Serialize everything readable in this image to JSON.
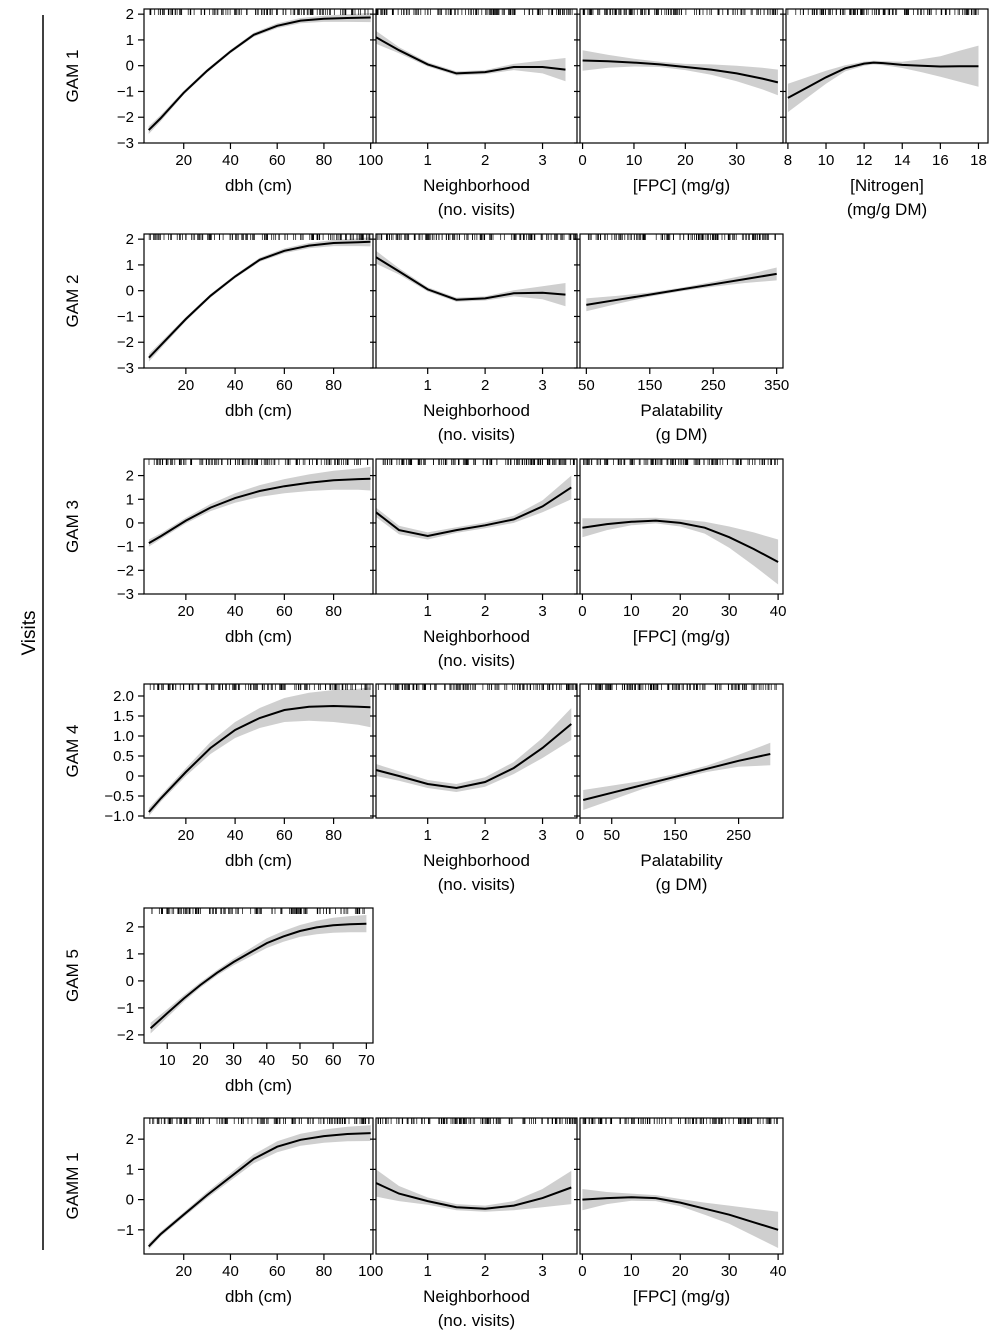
{
  "figure": {
    "side_label": "Visits"
  },
  "chart_data": [
    {
      "type": "line",
      "row": 0,
      "col": 0,
      "row_title": "GAM 1",
      "xlabel_lines": [
        "dbh (cm)"
      ],
      "xlim": [
        3,
        101
      ],
      "ylim": [
        -3,
        2.2
      ],
      "xticks": [
        20,
        40,
        60,
        80,
        100
      ],
      "yticks": [
        -3,
        -2,
        -1,
        0,
        1,
        2
      ],
      "rug_range": [
        5,
        100
      ],
      "series": [
        {
          "x": [
            5,
            10,
            20,
            30,
            40,
            50,
            60,
            70,
            80,
            90,
            100
          ],
          "y": [
            -2.5,
            -2.05,
            -1.05,
            -0.2,
            0.55,
            1.2,
            1.55,
            1.75,
            1.82,
            1.85,
            1.87
          ],
          "band": [
            0.15,
            0.12,
            0.08,
            0.07,
            0.07,
            0.08,
            0.09,
            0.1,
            0.12,
            0.15,
            0.18
          ]
        }
      ]
    },
    {
      "type": "line",
      "row": 0,
      "col": 1,
      "xlabel_lines": [
        "Neighborhood",
        "(no. visits)"
      ],
      "xlim": [
        0.1,
        3.6
      ],
      "ylim": [
        -3,
        2.2
      ],
      "xticks": [
        1,
        2,
        3
      ],
      "yticks": [
        -3,
        -2,
        -1,
        0,
        1,
        2
      ],
      "rug_range": [
        0.1,
        3.6
      ],
      "series": [
        {
          "x": [
            0.1,
            0.5,
            1.0,
            1.5,
            2.0,
            2.5,
            3.0,
            3.4
          ],
          "y": [
            1.1,
            0.6,
            0.05,
            -0.3,
            -0.25,
            -0.05,
            -0.05,
            -0.15
          ],
          "band": [
            0.25,
            0.12,
            0.08,
            0.08,
            0.08,
            0.12,
            0.25,
            0.45
          ]
        }
      ]
    },
    {
      "type": "line",
      "row": 0,
      "col": 2,
      "xlabel_lines": [
        "[FPC] (mg/g)"
      ],
      "xlim": [
        -0.5,
        39
      ],
      "ylim": [
        -3,
        2.2
      ],
      "xticks": [
        0,
        10,
        20,
        30
      ],
      "yticks": [
        -3,
        -2,
        -1,
        0,
        1,
        2
      ],
      "rug_range": [
        0,
        38
      ],
      "series": [
        {
          "x": [
            0,
            5,
            10,
            15,
            20,
            25,
            30,
            35,
            38
          ],
          "y": [
            0.2,
            0.17,
            0.12,
            0.05,
            -0.05,
            -0.15,
            -0.3,
            -0.5,
            -0.65
          ],
          "band": [
            0.4,
            0.25,
            0.15,
            0.1,
            0.12,
            0.2,
            0.3,
            0.42,
            0.5
          ]
        }
      ]
    },
    {
      "type": "line",
      "row": 0,
      "col": 3,
      "xlabel_lines": [
        "[Nitrogen]",
        "(mg/g DM)"
      ],
      "xlim": [
        7.9,
        18.5
      ],
      "ylim": [
        -3,
        2.2
      ],
      "xticks": [
        8,
        10,
        12,
        14,
        16,
        18
      ],
      "yticks": [
        -3,
        -2,
        -1,
        0,
        1,
        2
      ],
      "rug_range": [
        8,
        18
      ],
      "series": [
        {
          "x": [
            8,
            9,
            10,
            11,
            12,
            12.5,
            13,
            14,
            15,
            16,
            17,
            18
          ],
          "y": [
            -1.25,
            -0.85,
            -0.45,
            -0.1,
            0.08,
            0.12,
            0.1,
            0.03,
            0.0,
            -0.03,
            -0.02,
            -0.02
          ],
          "band": [
            0.55,
            0.4,
            0.25,
            0.12,
            0.08,
            0.07,
            0.08,
            0.12,
            0.25,
            0.4,
            0.6,
            0.8
          ]
        }
      ]
    },
    {
      "type": "line",
      "row": 1,
      "col": 0,
      "row_title": "GAM 2",
      "xlabel_lines": [
        "dbh (cm)"
      ],
      "xlim": [
        3,
        96
      ],
      "ylim": [
        -3,
        2.2
      ],
      "xticks": [
        20,
        40,
        60,
        80
      ],
      "yticks": [
        -3,
        -2,
        -1,
        0,
        1,
        2
      ],
      "rug_range": [
        5,
        95
      ],
      "series": [
        {
          "x": [
            5,
            10,
            20,
            30,
            40,
            50,
            60,
            70,
            80,
            90,
            95
          ],
          "y": [
            -2.6,
            -2.1,
            -1.1,
            -0.2,
            0.55,
            1.2,
            1.55,
            1.75,
            1.85,
            1.88,
            1.9
          ],
          "band": [
            0.15,
            0.12,
            0.08,
            0.07,
            0.07,
            0.08,
            0.09,
            0.1,
            0.12,
            0.15,
            0.18
          ]
        }
      ]
    },
    {
      "type": "line",
      "row": 1,
      "col": 1,
      "xlabel_lines": [
        "Neighborhood",
        "(no. visits)"
      ],
      "xlim": [
        0.1,
        3.6
      ],
      "ylim": [
        -3,
        2.2
      ],
      "xticks": [
        1,
        2,
        3
      ],
      "yticks": [
        -3,
        -2,
        -1,
        0,
        1,
        2
      ],
      "rug_range": [
        0.1,
        3.6
      ],
      "series": [
        {
          "x": [
            0.1,
            0.5,
            1.0,
            1.5,
            2.0,
            2.5,
            3.0,
            3.4
          ],
          "y": [
            1.3,
            0.75,
            0.05,
            -0.35,
            -0.3,
            -0.1,
            -0.08,
            -0.15
          ],
          "band": [
            0.25,
            0.12,
            0.08,
            0.08,
            0.08,
            0.12,
            0.25,
            0.45
          ]
        }
      ]
    },
    {
      "type": "line",
      "row": 1,
      "col": 2,
      "xlabel_lines": [
        "Palatability",
        "(g DM)"
      ],
      "xlim": [
        40,
        360
      ],
      "ylim": [
        -3,
        2.2
      ],
      "xticks": [
        50,
        150,
        250,
        350
      ],
      "yticks": [
        -3,
        -2,
        -1,
        0,
        1,
        2
      ],
      "rug_range": [
        50,
        350
      ],
      "series": [
        {
          "x": [
            50,
            100,
            150,
            200,
            250,
            300,
            350
          ],
          "y": [
            -0.55,
            -0.35,
            -0.15,
            0.05,
            0.25,
            0.45,
            0.65
          ],
          "band": [
            0.25,
            0.15,
            0.08,
            0.07,
            0.1,
            0.15,
            0.25
          ]
        }
      ]
    },
    {
      "type": "line",
      "row": 2,
      "col": 0,
      "row_title": "GAM 3",
      "xlabel_lines": [
        "dbh (cm)"
      ],
      "xlim": [
        3,
        96
      ],
      "ylim": [
        -3,
        2.7
      ],
      "xticks": [
        20,
        40,
        60,
        80
      ],
      "yticks": [
        -3,
        -2,
        -1,
        0,
        1,
        2
      ],
      "rug_range": [
        5,
        95
      ],
      "series": [
        {
          "x": [
            5,
            10,
            20,
            30,
            40,
            50,
            60,
            70,
            80,
            90,
            95
          ],
          "y": [
            -0.85,
            -0.55,
            0.1,
            0.65,
            1.05,
            1.35,
            1.55,
            1.7,
            1.8,
            1.85,
            1.87
          ],
          "band": [
            0.15,
            0.12,
            0.12,
            0.15,
            0.2,
            0.25,
            0.3,
            0.35,
            0.4,
            0.45,
            0.5
          ]
        }
      ]
    },
    {
      "type": "line",
      "row": 2,
      "col": 1,
      "xlabel_lines": [
        "Neighborhood",
        "(no. visits)"
      ],
      "xlim": [
        0.1,
        3.6
      ],
      "ylim": [
        -3,
        2.7
      ],
      "xticks": [
        1,
        2,
        3
      ],
      "yticks": [
        -3,
        -2,
        -1,
        0,
        1,
        2
      ],
      "rug_range": [
        0.1,
        3.6
      ],
      "series": [
        {
          "x": [
            0.1,
            0.5,
            1.0,
            1.5,
            2.0,
            2.5,
            3.0,
            3.5
          ],
          "y": [
            0.45,
            -0.3,
            -0.55,
            -0.3,
            -0.1,
            0.15,
            0.7,
            1.5
          ],
          "band": [
            0.2,
            0.18,
            0.15,
            0.12,
            0.12,
            0.15,
            0.25,
            0.5
          ]
        }
      ]
    },
    {
      "type": "line",
      "row": 2,
      "col": 2,
      "xlabel_lines": [
        "[FPC] (mg/g)"
      ],
      "xlim": [
        -0.5,
        41
      ],
      "ylim": [
        -3,
        2.7
      ],
      "xticks": [
        0,
        10,
        20,
        30,
        40
      ],
      "yticks": [
        -3,
        -2,
        -1,
        0,
        1,
        2
      ],
      "rug_range": [
        0,
        40
      ],
      "series": [
        {
          "x": [
            0,
            5,
            10,
            15,
            20,
            25,
            30,
            35,
            40
          ],
          "y": [
            -0.2,
            -0.05,
            0.05,
            0.1,
            0.0,
            -0.2,
            -0.6,
            -1.1,
            -1.65
          ],
          "band": [
            0.4,
            0.25,
            0.15,
            0.12,
            0.15,
            0.25,
            0.45,
            0.7,
            0.95
          ]
        }
      ]
    },
    {
      "type": "line",
      "row": 3,
      "col": 0,
      "row_title": "GAM 4",
      "xlabel_lines": [
        "dbh (cm)"
      ],
      "xlim": [
        3,
        96
      ],
      "ylim": [
        -1.05,
        2.3
      ],
      "xticks": [
        20,
        40,
        60,
        80
      ],
      "yticks": [
        -1.0,
        -0.5,
        0,
        0.5,
        1.0,
        1.5,
        2.0
      ],
      "ytick_labels": [
        "−1.0",
        "−0.5",
        "0",
        "0.5",
        "1.0",
        "1.5",
        "2.0"
      ],
      "rug_range": [
        5,
        95
      ],
      "series": [
        {
          "x": [
            5,
            10,
            20,
            30,
            40,
            50,
            60,
            70,
            80,
            90,
            95
          ],
          "y": [
            -0.9,
            -0.55,
            0.1,
            0.7,
            1.15,
            1.45,
            1.65,
            1.73,
            1.75,
            1.73,
            1.72
          ],
          "band": [
            0.1,
            0.08,
            0.1,
            0.15,
            0.2,
            0.25,
            0.3,
            0.35,
            0.4,
            0.45,
            0.5
          ]
        }
      ]
    },
    {
      "type": "line",
      "row": 3,
      "col": 1,
      "xlabel_lines": [
        "Neighborhood",
        "(no. visits)"
      ],
      "xlim": [
        0.1,
        3.6
      ],
      "ylim": [
        -1.05,
        2.3
      ],
      "xticks": [
        1,
        2,
        3
      ],
      "yticks": [
        -1.0,
        -0.5,
        0,
        0.5,
        1.0,
        1.5,
        2.0
      ],
      "rug_range": [
        0.1,
        3.6
      ],
      "series": [
        {
          "x": [
            0.1,
            0.5,
            1.0,
            1.5,
            2.0,
            2.5,
            3.0,
            3.5
          ],
          "y": [
            0.15,
            0.0,
            -0.2,
            -0.3,
            -0.15,
            0.2,
            0.7,
            1.3
          ],
          "band": [
            0.15,
            0.12,
            0.1,
            0.1,
            0.12,
            0.15,
            0.25,
            0.4
          ]
        }
      ]
    },
    {
      "type": "line",
      "row": 3,
      "col": 2,
      "xlabel_lines": [
        "Palatability",
        "(g DM)"
      ],
      "xlim": [
        0,
        320
      ],
      "ylim": [
        -1.05,
        2.3
      ],
      "xticks": [
        0,
        50,
        150,
        250
      ],
      "yticks": [
        -1.0,
        -0.5,
        0,
        0.5,
        1.0,
        1.5,
        2.0
      ],
      "rug_range": [
        5,
        310
      ],
      "series": [
        {
          "x": [
            5,
            50,
            100,
            150,
            200,
            250,
            300
          ],
          "y": [
            -0.6,
            -0.42,
            -0.22,
            -0.02,
            0.18,
            0.38,
            0.55
          ],
          "band": [
            0.25,
            0.18,
            0.1,
            0.07,
            0.08,
            0.15,
            0.28
          ]
        }
      ]
    },
    {
      "type": "line",
      "row": 4,
      "col": 0,
      "row_title": "GAM 5",
      "xlabel_lines": [
        "dbh (cm)"
      ],
      "xlim": [
        3,
        72
      ],
      "ylim": [
        -2.3,
        2.7
      ],
      "xticks": [
        10,
        20,
        30,
        40,
        50,
        60,
        70
      ],
      "yticks": [
        -2,
        -1,
        0,
        1,
        2
      ],
      "rug_range": [
        5,
        70
      ],
      "series": [
        {
          "x": [
            5,
            10,
            15,
            20,
            25,
            30,
            35,
            40,
            45,
            50,
            55,
            60,
            65,
            70
          ],
          "y": [
            -1.75,
            -1.2,
            -0.65,
            -0.15,
            0.3,
            0.7,
            1.05,
            1.4,
            1.65,
            1.85,
            1.98,
            2.06,
            2.1,
            2.12
          ],
          "band": [
            0.2,
            0.15,
            0.12,
            0.1,
            0.1,
            0.12,
            0.15,
            0.18,
            0.2,
            0.22,
            0.25,
            0.28,
            0.3,
            0.32
          ]
        }
      ]
    },
    {
      "type": "line",
      "row": 5,
      "col": 0,
      "row_title": "GAMM 1",
      "xlabel_lines": [
        "dbh (cm)"
      ],
      "xlim": [
        3,
        101
      ],
      "ylim": [
        -1.8,
        2.7
      ],
      "xticks": [
        20,
        40,
        60,
        80,
        100
      ],
      "yticks": [
        -1,
        0,
        1,
        2
      ],
      "rug_range": [
        5,
        100
      ],
      "series": [
        {
          "x": [
            5,
            10,
            20,
            30,
            40,
            50,
            60,
            70,
            80,
            90,
            100
          ],
          "y": [
            -1.55,
            -1.15,
            -0.5,
            0.15,
            0.75,
            1.35,
            1.75,
            1.98,
            2.1,
            2.17,
            2.2
          ],
          "band": [
            0.1,
            0.08,
            0.08,
            0.1,
            0.12,
            0.15,
            0.18,
            0.2,
            0.22,
            0.24,
            0.26
          ]
        }
      ]
    },
    {
      "type": "line",
      "row": 5,
      "col": 1,
      "xlabel_lines": [
        "Neighborhood",
        "(no. visits)"
      ],
      "xlim": [
        0.1,
        3.6
      ],
      "ylim": [
        -1.8,
        2.7
      ],
      "xticks": [
        1,
        2,
        3
      ],
      "yticks": [
        -1,
        0,
        1,
        2
      ],
      "rug_range": [
        0.1,
        3.6
      ],
      "series": [
        {
          "x": [
            0.1,
            0.5,
            1.0,
            1.5,
            2.0,
            2.5,
            3.0,
            3.5
          ],
          "y": [
            0.55,
            0.2,
            -0.05,
            -0.25,
            -0.3,
            -0.2,
            0.05,
            0.4
          ],
          "band": [
            0.45,
            0.25,
            0.12,
            0.1,
            0.1,
            0.15,
            0.3,
            0.55
          ]
        }
      ]
    },
    {
      "type": "line",
      "row": 5,
      "col": 2,
      "xlabel_lines": [
        "[FPC] (mg/g)"
      ],
      "xlim": [
        -0.5,
        41
      ],
      "ylim": [
        -1.8,
        2.7
      ],
      "xticks": [
        0,
        10,
        20,
        30,
        40
      ],
      "yticks": [
        -1,
        0,
        1,
        2
      ],
      "rug_range": [
        0,
        40
      ],
      "series": [
        {
          "x": [
            0,
            5,
            10,
            15,
            20,
            25,
            30,
            35,
            40
          ],
          "y": [
            0.0,
            0.05,
            0.08,
            0.05,
            -0.1,
            -0.3,
            -0.5,
            -0.75,
            -1.0
          ],
          "band": [
            0.35,
            0.2,
            0.12,
            0.1,
            0.12,
            0.2,
            0.3,
            0.45,
            0.6
          ]
        }
      ]
    }
  ]
}
